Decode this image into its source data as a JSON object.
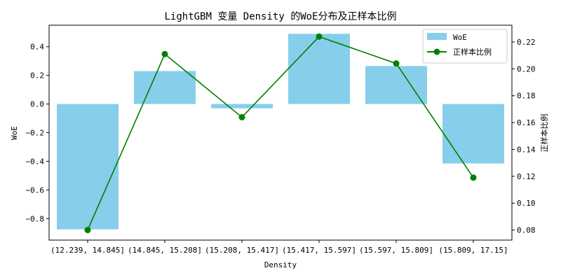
{
  "chart_data": {
    "type": "bar",
    "title": "LightGBM 变量 Density 的WoE分布及正样本比例",
    "xlabel": "Density",
    "ylabel": "WoE",
    "y2label": "正样本比例",
    "categories": [
      "(12.239, 14.845]",
      "(14.845, 15.208]",
      "(15.208, 15.417]",
      "(15.417, 15.597]",
      "(15.597, 15.809]",
      "(15.809, 17.15]"
    ],
    "series": [
      {
        "name": "WoE",
        "type": "bar",
        "axis": "left",
        "color": "#87ceeb",
        "values": [
          -0.875,
          0.23,
          -0.03,
          0.49,
          0.265,
          -0.415
        ]
      },
      {
        "name": "正样本比例",
        "type": "line",
        "axis": "right",
        "color": "#008000",
        "marker": "circle",
        "values": [
          0.08,
          0.211,
          0.164,
          0.224,
          0.204,
          0.119
        ]
      }
    ],
    "ylim": [
      -0.95,
      0.55
    ],
    "y2lim": [
      0.0725,
      0.2325
    ],
    "yticks": [
      -0.8,
      -0.6,
      -0.4,
      -0.2,
      0.0,
      0.2,
      0.4
    ],
    "ytick_labels": [
      "−0.8",
      "−0.6",
      "−0.4",
      "−0.2",
      "0.0",
      "0.2",
      "0.4"
    ],
    "y2ticks": [
      0.08,
      0.1,
      0.12,
      0.14,
      0.16,
      0.18,
      0.2,
      0.22
    ],
    "y2tick_labels": [
      "0.08",
      "0.10",
      "0.12",
      "0.14",
      "0.16",
      "0.18",
      "0.20",
      "0.22"
    ],
    "legend": {
      "position": "top-right",
      "entries": [
        "WoE",
        "正样本比例"
      ]
    },
    "grid": false
  }
}
